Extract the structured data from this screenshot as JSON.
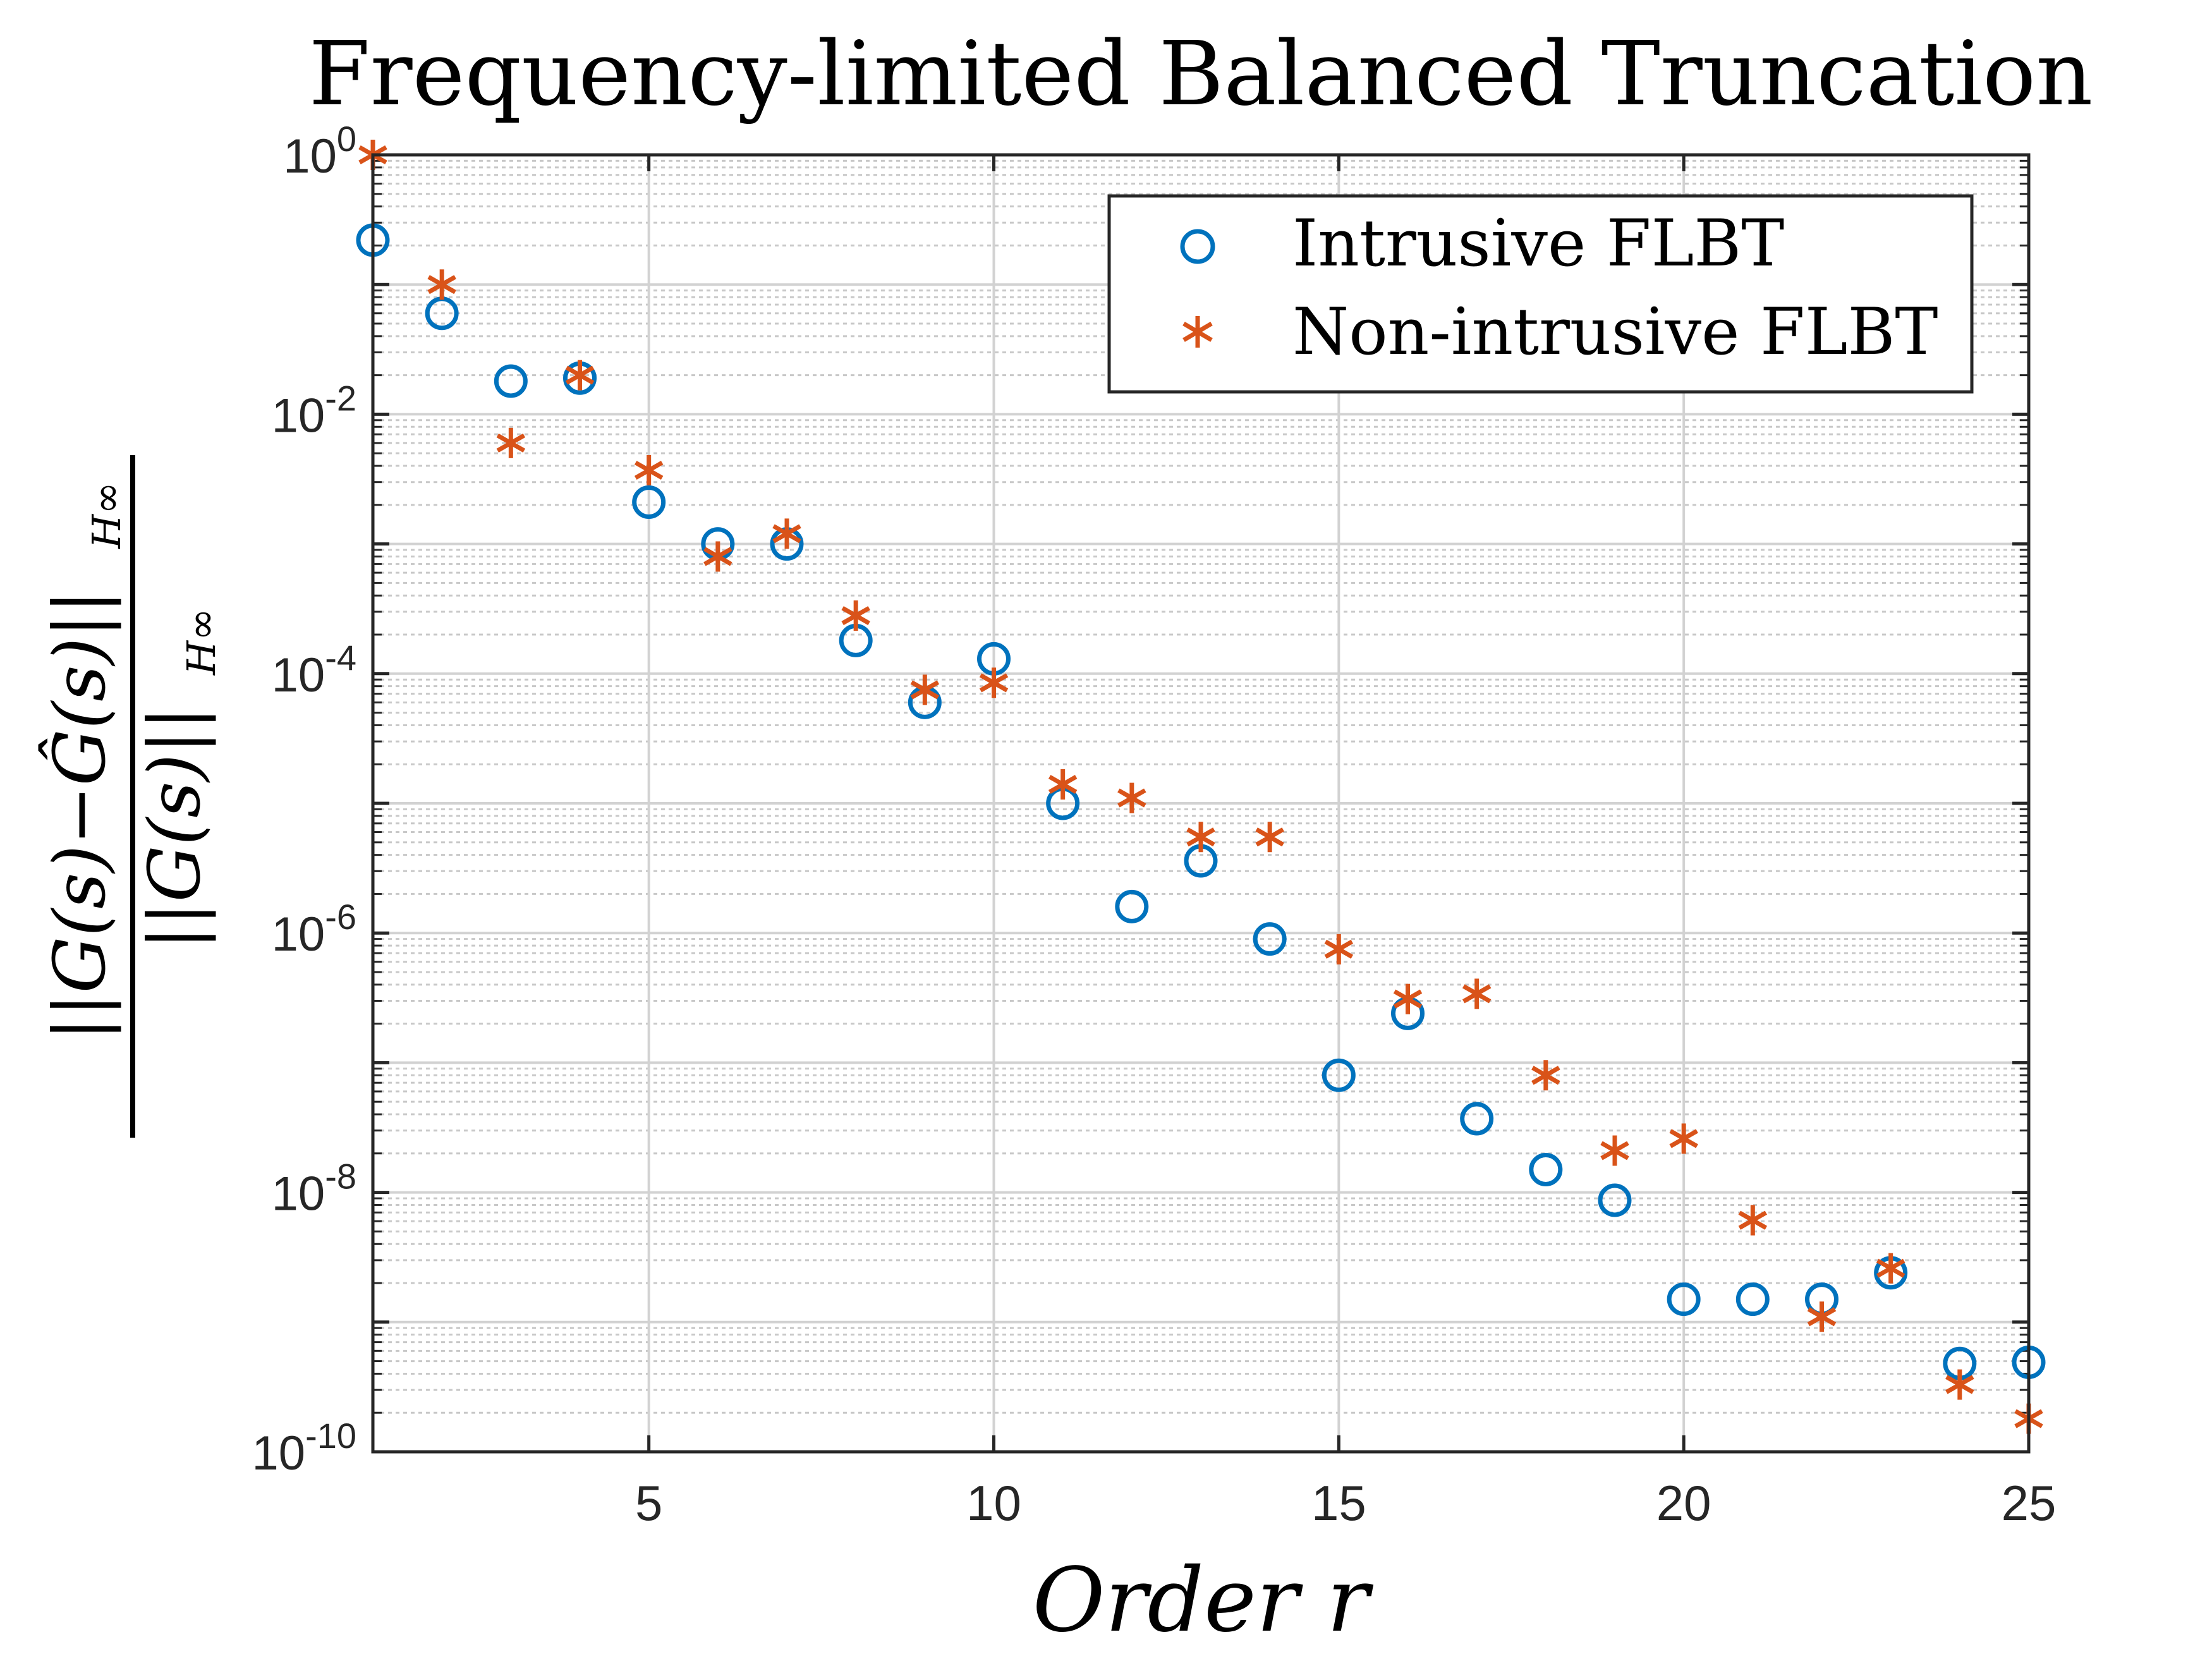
{
  "chart_data": {
    "type": "scatter",
    "title": "Frequency-limited Balanced Truncation",
    "xlabel": "Order r",
    "ylabel": "||G(s) − Ĝ(s)||_H∞ / ||G(s)||_H∞",
    "ylabel_parts": {
      "numerator": "||G(s)−Ĝ(s)||",
      "denominator": "||G(s)||",
      "subscript": "H∞"
    },
    "xlim": [
      1,
      25
    ],
    "ylim": [
      1e-10,
      1
    ],
    "yscale": "log",
    "grid": true,
    "minor_grid": true,
    "x_ticks": [
      {
        "value": 5,
        "label": "5"
      },
      {
        "value": 10,
        "label": "10"
      },
      {
        "value": 15,
        "label": "15"
      },
      {
        "value": 20,
        "label": "20"
      },
      {
        "value": 25,
        "label": "25"
      }
    ],
    "y_ticks": [
      {
        "value": 1,
        "base": "10",
        "exp": "0"
      },
      {
        "value": 0.01,
        "base": "10",
        "exp": "-2"
      },
      {
        "value": 0.0001,
        "base": "10",
        "exp": "-4"
      },
      {
        "value": 1e-06,
        "base": "10",
        "exp": "-6"
      },
      {
        "value": 1e-08,
        "base": "10",
        "exp": "-8"
      },
      {
        "value": 1e-10,
        "base": "10",
        "exp": "-10"
      }
    ],
    "legend_position": "top-right",
    "series": [
      {
        "name": "Intrusive FLBT",
        "marker": "circle",
        "color": "#0072BD",
        "x": [
          1,
          2,
          3,
          4,
          5,
          6,
          7,
          8,
          9,
          10,
          11,
          12,
          13,
          14,
          15,
          16,
          17,
          18,
          19,
          20,
          21,
          22,
          23,
          24,
          25
        ],
        "y": [
          0.22,
          0.06,
          0.018,
          0.019,
          0.0021,
          0.001,
          0.001,
          0.00018,
          6e-05,
          0.00013,
          1e-05,
          1.6e-06,
          3.6e-06,
          9e-07,
          8e-08,
          2.4e-07,
          3.7e-08,
          1.5e-08,
          8.7e-09,
          1.5e-09,
          1.5e-09,
          1.5e-09,
          2.4e-09,
          4.8e-10,
          4.9e-10
        ]
      },
      {
        "name": "Non-intrusive FLBT",
        "marker": "asterisk",
        "color": "#D95319",
        "x": [
          1,
          2,
          3,
          4,
          5,
          6,
          7,
          8,
          9,
          10,
          11,
          12,
          13,
          14,
          15,
          16,
          17,
          18,
          19,
          20,
          21,
          22,
          23,
          24,
          25
        ],
        "y": [
          1.0,
          0.1,
          0.006,
          0.02,
          0.0037,
          0.0008,
          0.0012,
          0.00028,
          7.5e-05,
          8.5e-05,
          1.4e-05,
          1.1e-05,
          5.5e-06,
          5.5e-06,
          7.5e-07,
          3.1e-07,
          3.4e-07,
          8e-08,
          2.1e-08,
          2.6e-08,
          6.1e-09,
          1.1e-09,
          2.6e-09,
          3.3e-10,
          1.8e-10
        ]
      }
    ]
  }
}
